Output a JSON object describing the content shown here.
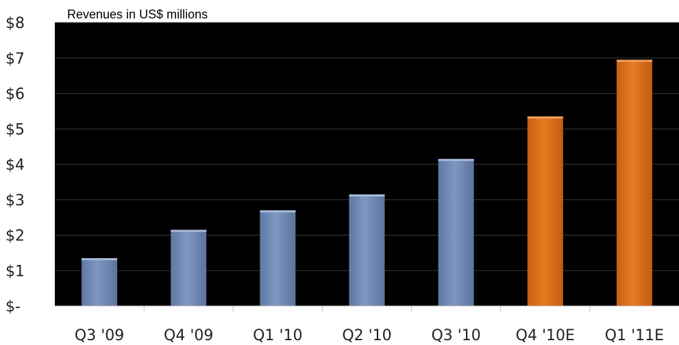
{
  "chart_data": {
    "type": "bar",
    "title": "Revenues in US$ millions",
    "categories": [
      "Q3 '09",
      "Q4 '09",
      "Q1 '10",
      "Q2 '10",
      "Q3 '10",
      "Q4 '10E",
      "Q1 '11E"
    ],
    "values": [
      1.35,
      2.15,
      2.7,
      3.15,
      4.15,
      5.35,
      6.95
    ],
    "estimated": [
      false,
      false,
      false,
      false,
      false,
      true,
      true
    ],
    "ylim": [
      0,
      8
    ],
    "yticks": [
      0,
      1,
      2,
      3,
      4,
      5,
      6,
      7,
      8
    ],
    "ytick_labels": [
      "$-",
      "$1",
      "$2",
      "$3",
      "$4",
      "$5",
      "$6",
      "$7",
      "$8"
    ],
    "xlabel": "",
    "ylabel": "",
    "grid": true,
    "colors": {
      "plot_background": "#000000",
      "actual_bar": "#7189b4",
      "estimate_bar": "#d86e1c",
      "gridline": "#3a3a3a"
    }
  }
}
